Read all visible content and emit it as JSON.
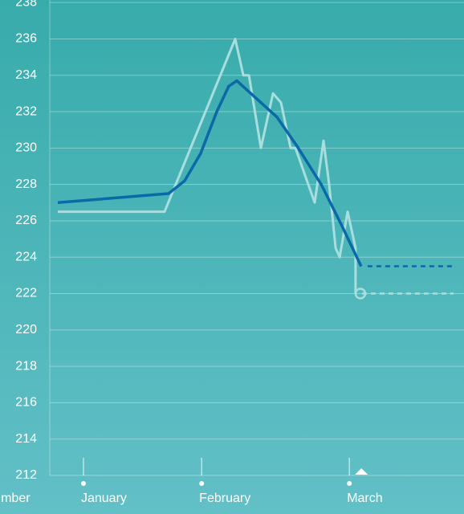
{
  "chart_data": {
    "type": "line",
    "series": [
      {
        "name": null,
        "color": "#a9dede",
        "x": [
          3.26,
          10.49,
          15.27,
          15.82,
          16.2,
          17.01,
          17.83,
          18.37,
          19.02,
          19.35,
          20.65,
          21.25,
          21.63,
          22.07,
          22.34,
          22.88,
          23.42,
          23.42
        ],
        "values": [
          226.5,
          226.5,
          236,
          234,
          234,
          230,
          233,
          232.5,
          230,
          230,
          227,
          230.4,
          228,
          224.5,
          224,
          226.5,
          224.5,
          222
        ]
      },
      {
        "name": null,
        "color": "#0b69a8",
        "x": [
          3.26,
          10.76,
          11.85,
          12.93,
          14.02,
          14.84,
          15.38,
          16.74,
          18.1,
          19.46,
          21.09,
          22.45,
          23.8
        ],
        "values": [
          227,
          227.5,
          228.2,
          229.7,
          232,
          233.4,
          233.7,
          232.7,
          231.7,
          230.1,
          228,
          225.8,
          223.5
        ]
      }
    ],
    "xlim": [
      -0.65,
      30.76
    ],
    "xticks": [
      {
        "value": 0.4,
        "label": "mber"
      },
      {
        "value": 5,
        "label": "January"
      },
      {
        "value": 13,
        "label": "February"
      },
      {
        "value": 23,
        "label": "March"
      }
    ],
    "ylim": [
      212,
      238.14
    ],
    "yticks": [
      212,
      214,
      216,
      218,
      220,
      222,
      224,
      226,
      228,
      230,
      232,
      234,
      236,
      238
    ],
    "grid": true
  }
}
